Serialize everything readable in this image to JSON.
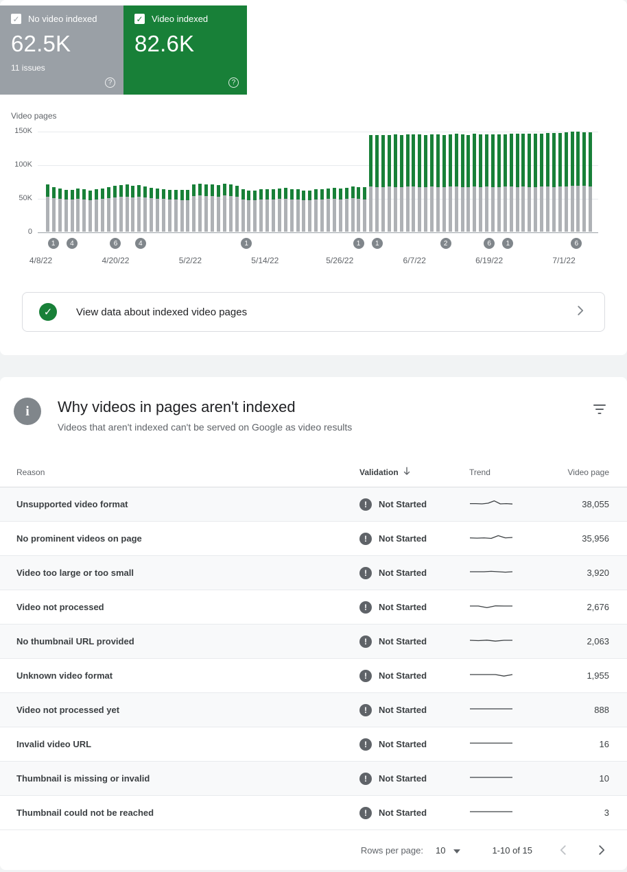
{
  "cards": {
    "no_video_indexed": {
      "label": "No video indexed",
      "value": "62.5K",
      "issues": "11 issues",
      "color": "#9aa0a6"
    },
    "video_indexed": {
      "label": "Video indexed",
      "value": "82.6K",
      "color": "#188038"
    }
  },
  "chart": {
    "type": "bar",
    "ylabel": "Video pages",
    "ymax": 150,
    "unit": "K",
    "yticks": [
      {
        "label": "150K",
        "value": 150
      },
      {
        "label": "100K",
        "value": 100
      },
      {
        "label": "50K",
        "value": 50
      },
      {
        "label": "0",
        "value": 0
      }
    ],
    "x_labels": [
      {
        "day": 0,
        "label": "4/8/22"
      },
      {
        "day": 12,
        "label": "4/20/22"
      },
      {
        "day": 24,
        "label": "5/2/22"
      },
      {
        "day": 36,
        "label": "5/14/22"
      },
      {
        "day": 48,
        "label": "5/26/22"
      },
      {
        "day": 60,
        "label": "6/7/22"
      },
      {
        "day": 72,
        "label": "6/19/22"
      },
      {
        "day": 84,
        "label": "7/1/22"
      }
    ],
    "annotations": [
      {
        "day": 2,
        "label": "1"
      },
      {
        "day": 5,
        "label": "4"
      },
      {
        "day": 12,
        "label": "6"
      },
      {
        "day": 16,
        "label": "4"
      },
      {
        "day": 33,
        "label": "1"
      },
      {
        "day": 51,
        "label": "1"
      },
      {
        "day": 54,
        "label": "1"
      },
      {
        "day": 65,
        "label": "2"
      },
      {
        "day": 72,
        "label": "6"
      },
      {
        "day": 75,
        "label": "1"
      },
      {
        "day": 86,
        "label": "6"
      }
    ],
    "series": [
      {
        "name": "No video indexed",
        "color": "#aeb1b5",
        "values": [
          52,
          50,
          49,
          48,
          48,
          49,
          48,
          47,
          48,
          49,
          50,
          51,
          52,
          52,
          51,
          52,
          51,
          50,
          49,
          49,
          48,
          48,
          47,
          47,
          53,
          54,
          53,
          53,
          52,
          54,
          53,
          52,
          48,
          47,
          47,
          48,
          48,
          48,
          49,
          49,
          48,
          48,
          47,
          47,
          48,
          48,
          49,
          49,
          48,
          49,
          50,
          49,
          48,
          67,
          66,
          66,
          67,
          66,
          66,
          67,
          67,
          66,
          66,
          67,
          66,
          66,
          67,
          67,
          66,
          66,
          67,
          66,
          67,
          66,
          66,
          67,
          67,
          66,
          67,
          66,
          66,
          67,
          67,
          66,
          67,
          67,
          68,
          68,
          68,
          67
        ]
      },
      {
        "name": "Video indexed",
        "color": "#188038",
        "values": [
          18,
          16,
          15,
          14,
          14,
          15,
          15,
          14,
          15,
          15,
          16,
          17,
          17,
          18,
          17,
          17,
          16,
          15,
          15,
          14,
          14,
          14,
          15,
          15,
          17,
          17,
          17,
          17,
          17,
          17,
          17,
          16,
          15,
          14,
          14,
          15,
          15,
          15,
          15,
          16,
          15,
          15,
          14,
          14,
          15,
          15,
          15,
          16,
          16,
          16,
          17,
          17,
          18,
          77,
          78,
          78,
          77,
          79,
          78,
          78,
          78,
          79,
          78,
          78,
          79,
          78,
          78,
          79,
          79,
          78,
          79,
          79,
          78,
          79,
          79,
          78,
          79,
          80,
          79,
          80,
          80,
          79,
          80,
          81,
          80,
          81,
          81,
          81,
          80,
          81
        ]
      }
    ]
  },
  "view_data": {
    "label": "View data about indexed video pages"
  },
  "issues": {
    "title": "Why videos in pages aren't indexed",
    "subtitle": "Videos that aren't indexed can't be served on Google as video results",
    "headers": {
      "reason": "Reason",
      "validation": "Validation",
      "trend": "Trend",
      "video_page": "Video page"
    },
    "rows": [
      {
        "reason": "Unsupported video format",
        "validation": "Not Started",
        "video_pages": "38,055",
        "trend": [
          0.45,
          0.45,
          0.42,
          0.5,
          0.78,
          0.42,
          0.45,
          0.4
        ]
      },
      {
        "reason": "No prominent videos on page",
        "validation": "Not Started",
        "video_pages": "35,956",
        "trend": [
          0.45,
          0.42,
          0.45,
          0.38,
          0.72,
          0.45,
          0.5
        ]
      },
      {
        "reason": "Video too large or too small",
        "validation": "Not Started",
        "video_pages": "3,920",
        "trend": [
          0.5,
          0.5,
          0.5,
          0.55,
          0.5,
          0.45,
          0.5
        ]
      },
      {
        "reason": "Video not processed",
        "validation": "Not Started",
        "video_pages": "2,676",
        "trend": [
          0.5,
          0.5,
          0.3,
          0.52,
          0.5,
          0.5
        ]
      },
      {
        "reason": "No thumbnail URL provided",
        "validation": "Not Started",
        "video_pages": "2,063",
        "trend": [
          0.5,
          0.46,
          0.52,
          0.4,
          0.5,
          0.5
        ]
      },
      {
        "reason": "Unknown video format",
        "validation": "Not Started",
        "video_pages": "1,955",
        "trend": [
          0.5,
          0.5,
          0.5,
          0.5,
          0.32,
          0.5
        ]
      },
      {
        "reason": "Video not processed yet",
        "validation": "Not Started",
        "video_pages": "888",
        "trend": [
          0.5,
          0.5,
          0.5,
          0.5
        ]
      },
      {
        "reason": "Invalid video URL",
        "validation": "Not Started",
        "video_pages": "16",
        "trend": [
          0.5,
          0.5,
          0.5,
          0.5
        ]
      },
      {
        "reason": "Thumbnail is missing or invalid",
        "validation": "Not Started",
        "video_pages": "10",
        "trend": [
          0.5,
          0.5,
          0.5,
          0.5
        ]
      },
      {
        "reason": "Thumbnail could not be reached",
        "validation": "Not Started",
        "video_pages": "3",
        "trend": [
          0.5,
          0.5,
          0.5,
          0.5
        ]
      }
    ],
    "footer": {
      "rows_per_page_label": "Rows per page:",
      "rows_per_page": "10",
      "range": "1-10 of 15"
    }
  }
}
